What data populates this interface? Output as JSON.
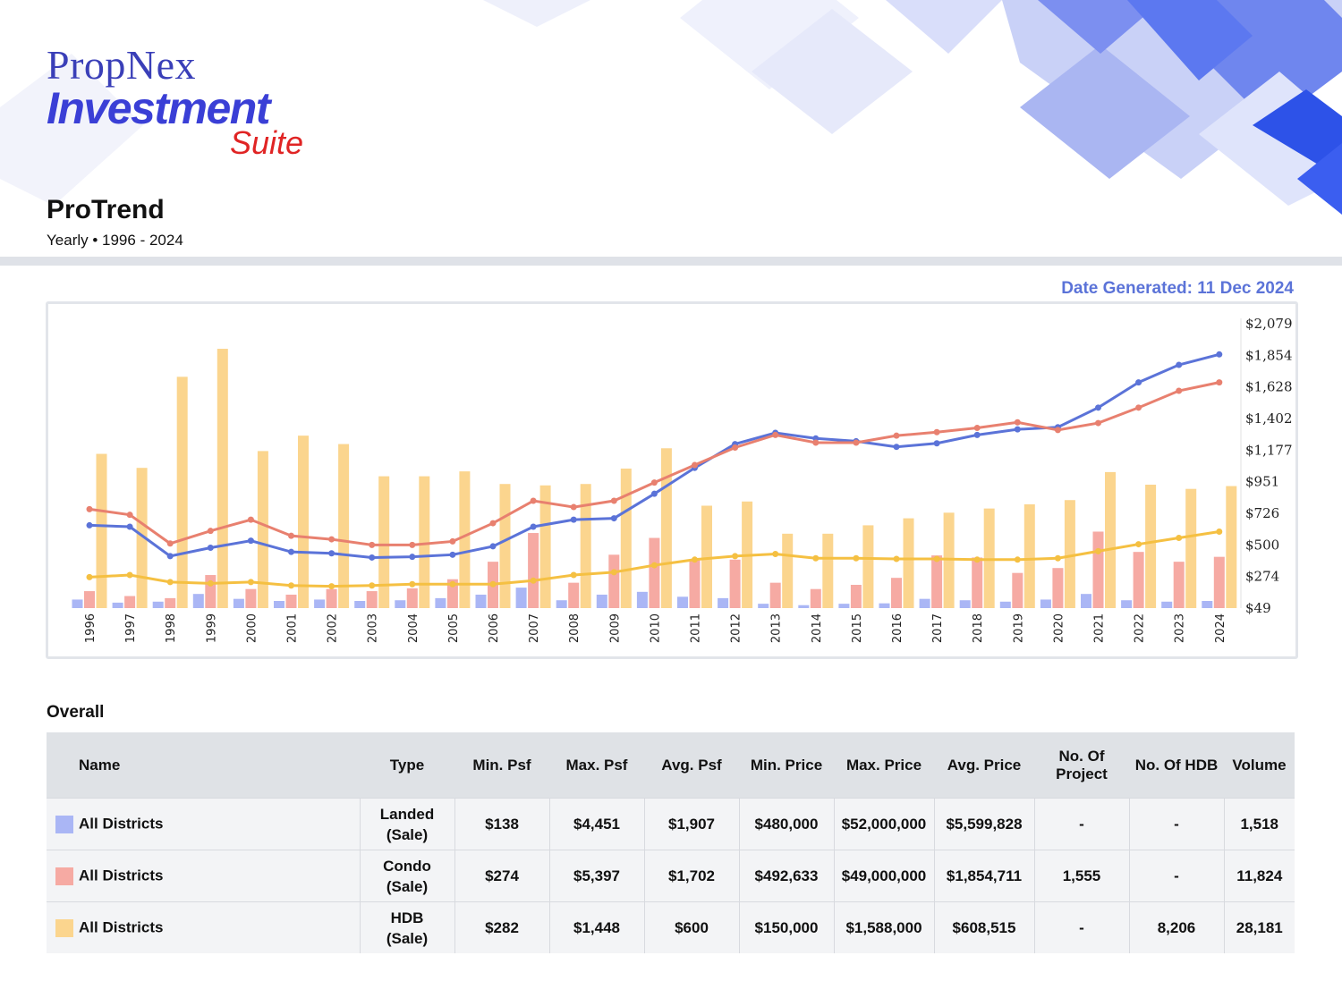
{
  "brand": {
    "line1": "PropNex",
    "line2": "Investment",
    "line3": "Suite"
  },
  "report": {
    "title": "ProTrend",
    "subtitle": "Yearly • 1996 - 2024",
    "date_generated": "Date Generated: 11 Dec 2024"
  },
  "colors": {
    "landed": "#5b73d8",
    "landed_bar": "#aab6f5",
    "condo": "#e8806f",
    "condo_bar": "#f6aaa3",
    "hdb": "#f5c042",
    "hdb_bar": "#fbd58e",
    "accent": "#5b73d8"
  },
  "chart_data": {
    "type": "bar",
    "categories": [
      "1996",
      "1997",
      "1998",
      "1999",
      "2000",
      "2001",
      "2002",
      "2003",
      "2004",
      "2005",
      "2006",
      "2007",
      "2008",
      "2009",
      "2010",
      "2011",
      "2012",
      "2013",
      "2014",
      "2015",
      "2016",
      "2017",
      "2018",
      "2019",
      "2020",
      "2021",
      "2022",
      "2023",
      "2024"
    ],
    "y_ticks": [
      "$2,079",
      "$1,854",
      "$1,628",
      "$1,402",
      "$1,177",
      "$951",
      "$726",
      "$500",
      "$274",
      "$49"
    ],
    "ylim": [
      49,
      2079
    ],
    "y_axis_side": "right",
    "grid": false,
    "bar_series": [
      {
        "values": [
          110,
          88,
          95,
          150,
          115,
          100,
          110,
          100,
          105,
          120,
          145,
          195,
          105,
          145,
          165,
          130,
          120,
          80,
          70,
          80,
          83,
          115,
          105,
          95,
          110,
          150,
          105,
          95,
          100
        ]
      },
      {
        "values": [
          170,
          135,
          120,
          285,
          185,
          145,
          185,
          170,
          190,
          255,
          380,
          585,
          230,
          430,
          550,
          400,
          395,
          230,
          185,
          215,
          265,
          425,
          410,
          300,
          335,
          595,
          450,
          380,
          415
        ]
      },
      {
        "values": [
          1150,
          1050,
          1700,
          1900,
          1170,
          1280,
          1220,
          990,
          990,
          1025,
          935,
          925,
          935,
          1045,
          1190,
          780,
          810,
          580,
          580,
          640,
          690,
          730,
          760,
          790,
          820,
          1020,
          930,
          900,
          920
        ]
      }
    ],
    "line_series": [
      {
        "values": [
          640,
          630,
          420,
          480,
          530,
          450,
          440,
          410,
          415,
          430,
          490,
          630,
          680,
          690,
          865,
          1050,
          1220,
          1300,
          1260,
          1240,
          1200,
          1225,
          1285,
          1325,
          1340,
          1480,
          1660,
          1785,
          1860
        ]
      },
      {
        "values": [
          755,
          715,
          510,
          600,
          680,
          565,
          540,
          500,
          500,
          525,
          655,
          815,
          770,
          815,
          945,
          1070,
          1195,
          1285,
          1230,
          1230,
          1280,
          1305,
          1335,
          1375,
          1320,
          1370,
          1480,
          1600,
          1660
        ]
      },
      {
        "values": [
          270,
          285,
          235,
          225,
          235,
          210,
          205,
          210,
          220,
          220,
          220,
          245,
          285,
          305,
          355,
          395,
          420,
          435,
          405,
          405,
          400,
          400,
          395,
          395,
          405,
          455,
          505,
          550,
          595
        ]
      }
    ]
  },
  "table": {
    "section_title": "Overall",
    "headers": [
      "Name",
      "Type",
      "Min. Psf",
      "Max. Psf",
      "Avg. Psf",
      "Min. Price",
      "Max. Price",
      "Avg. Price",
      "No. Of Project",
      "No. Of HDB",
      "Volume"
    ],
    "rows": [
      {
        "name": "All Districts",
        "type1": "Landed",
        "type2": "(Sale)",
        "min_psf": "$138",
        "max_psf": "$4,451",
        "avg_psf": "$1,907",
        "min_price": "$480,000",
        "max_price": "$52,000,000",
        "avg_price": "$5,599,828",
        "projects": "-",
        "hdb": "-",
        "volume": "1,518"
      },
      {
        "name": "All Districts",
        "type1": "Condo",
        "type2": "(Sale)",
        "min_psf": "$274",
        "max_psf": "$5,397",
        "avg_psf": "$1,702",
        "min_price": "$492,633",
        "max_price": "$49,000,000",
        "avg_price": "$1,854,711",
        "projects": "1,555",
        "hdb": "-",
        "volume": "11,824"
      },
      {
        "name": "All Districts",
        "type1": "HDB",
        "type2": "(Sale)",
        "min_psf": "$282",
        "max_psf": "$1,448",
        "avg_psf": "$600",
        "min_price": "$150,000",
        "max_price": "$1,588,000",
        "avg_price": "$608,515",
        "projects": "-",
        "hdb": "8,206",
        "volume": "28,181"
      }
    ]
  }
}
